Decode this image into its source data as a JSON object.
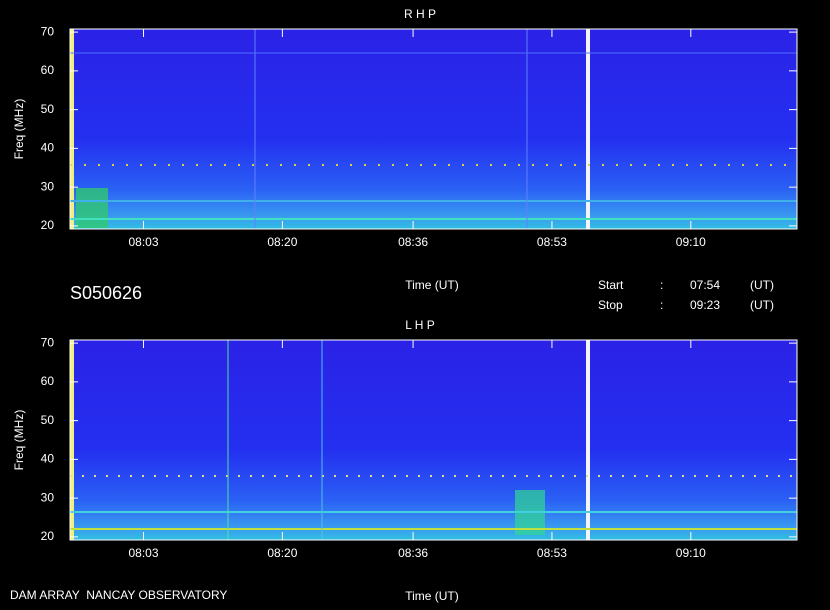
{
  "chart_data": [
    {
      "type": "spectrogram",
      "title": "R H P",
      "ylabel": "Freq (MHz)",
      "xlabel": "Time (UT)",
      "xlim": [
        "07:54",
        "09:23"
      ],
      "xticks": [
        "08:03",
        "08:20",
        "08:36",
        "08:53",
        "09:10"
      ],
      "ylim": [
        19.2,
        70.8
      ],
      "yticks": [
        20,
        30,
        40,
        50,
        60,
        70
      ]
    },
    {
      "type": "spectrogram",
      "title": "L H P",
      "ylabel": "Freq (MHz)",
      "xlabel": "Time (UT)",
      "xlim": [
        "07:54",
        "09:23"
      ],
      "xticks": [
        "08:03",
        "08:20",
        "08:36",
        "08:53",
        "09:10"
      ],
      "ylim": [
        19.2,
        70.8
      ],
      "yticks": [
        20,
        30,
        40,
        50,
        60,
        70
      ]
    }
  ],
  "info": {
    "id": "S050626",
    "start_label": "Start",
    "stop_label": "Stop",
    "separator": ":",
    "start": "07:54",
    "stop": "09:23",
    "unit": "(UT)"
  },
  "footer": "DAM ARRAY  NANCAY OBSERVATORY"
}
